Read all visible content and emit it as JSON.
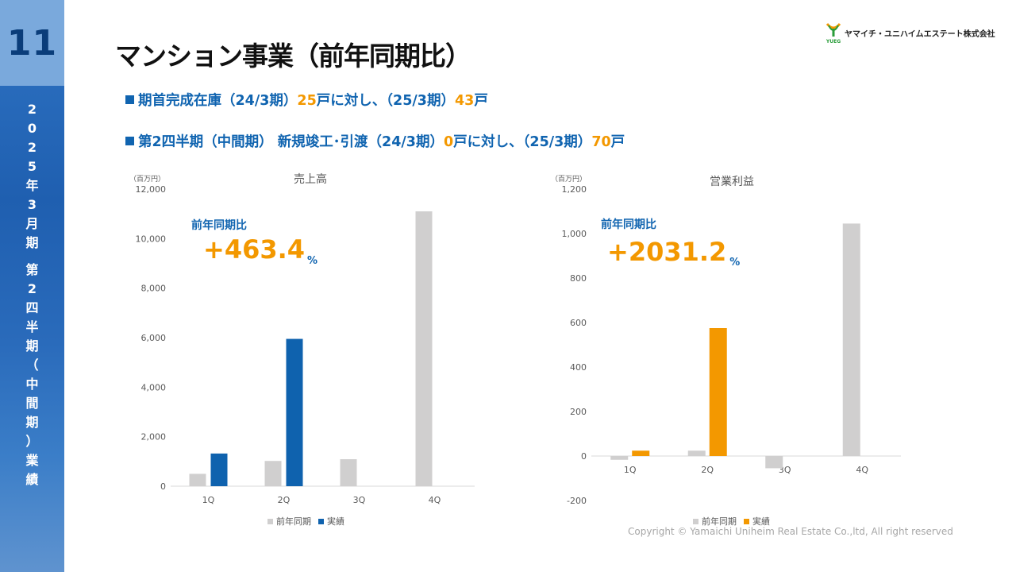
{
  "page_number": "11",
  "sidebar_lines": [
    "2",
    "0",
    "2",
    "5",
    "年",
    "3",
    "月",
    "期",
    "",
    "第",
    "2",
    "四",
    "半",
    "期",
    "（",
    "中",
    "間",
    "期",
    "）",
    "業",
    "績"
  ],
  "title": "マンション事業（前年同期比）",
  "logo": {
    "text": "ヤマイチ・ユニハイムエステート株式会社",
    "mark_text": "YUEG"
  },
  "bullets": [
    {
      "before": "期首完成在庫（24/3期）",
      "hl1": "25",
      "mid": "戸に対し、（25/3期）",
      "hl2": "43",
      "after": "戸"
    },
    {
      "before": "第2四半期（中間期） 新規竣工･引渡（24/3期）",
      "hl1": "0",
      "mid": "戸に対し、（25/3期）",
      "hl2": "70",
      "after": "戸"
    }
  ],
  "copyright": "Copyright © Yamaichi Uniheim Real Estate Co.,ltd, All right reserved",
  "chart_data": [
    {
      "type": "bar",
      "title": "売上高",
      "unit": "（百万円）",
      "categories": [
        "1Q",
        "2Q",
        "3Q",
        "4Q"
      ],
      "ylim": [
        0,
        12000
      ],
      "yticks": [
        0,
        2000,
        4000,
        6000,
        8000,
        10000,
        12000
      ],
      "ytick_labels": [
        "0",
        "2,000",
        "4,000",
        "6,000",
        "8,000",
        "10,000",
        "12,000"
      ],
      "series": [
        {
          "name": "前年同期",
          "color": "#d0cfcf",
          "values": [
            500,
            1020,
            1090,
            11100
          ]
        },
        {
          "name": "実績",
          "color": "#0f62ae",
          "values": [
            1320,
            5950,
            null,
            null
          ]
        }
      ],
      "yoy_label": "前年同期比",
      "yoy_value": "+463.4",
      "yoy_unit": "%",
      "legend": "bottom"
    },
    {
      "type": "bar",
      "title": "営業利益",
      "unit": "（百万円）",
      "categories": [
        "1Q",
        "2Q",
        "3Q",
        "4Q"
      ],
      "ylim": [
        -200,
        1200
      ],
      "yticks": [
        -200,
        0,
        200,
        400,
        600,
        800,
        1000,
        1200
      ],
      "ytick_labels": [
        "-200",
        "0",
        "200",
        "400",
        "600",
        "800",
        "1,000",
        "1,200"
      ],
      "series": [
        {
          "name": "前年同期",
          "color": "#d0cfcf",
          "values": [
            -17,
            24,
            -55,
            1045
          ]
        },
        {
          "name": "実績",
          "color": "#f39800",
          "values": [
            24,
            575,
            null,
            null
          ]
        }
      ],
      "yoy_label": "前年同期比",
      "yoy_value": "+2031.2",
      "yoy_unit": "%",
      "legend": "bottom"
    }
  ]
}
